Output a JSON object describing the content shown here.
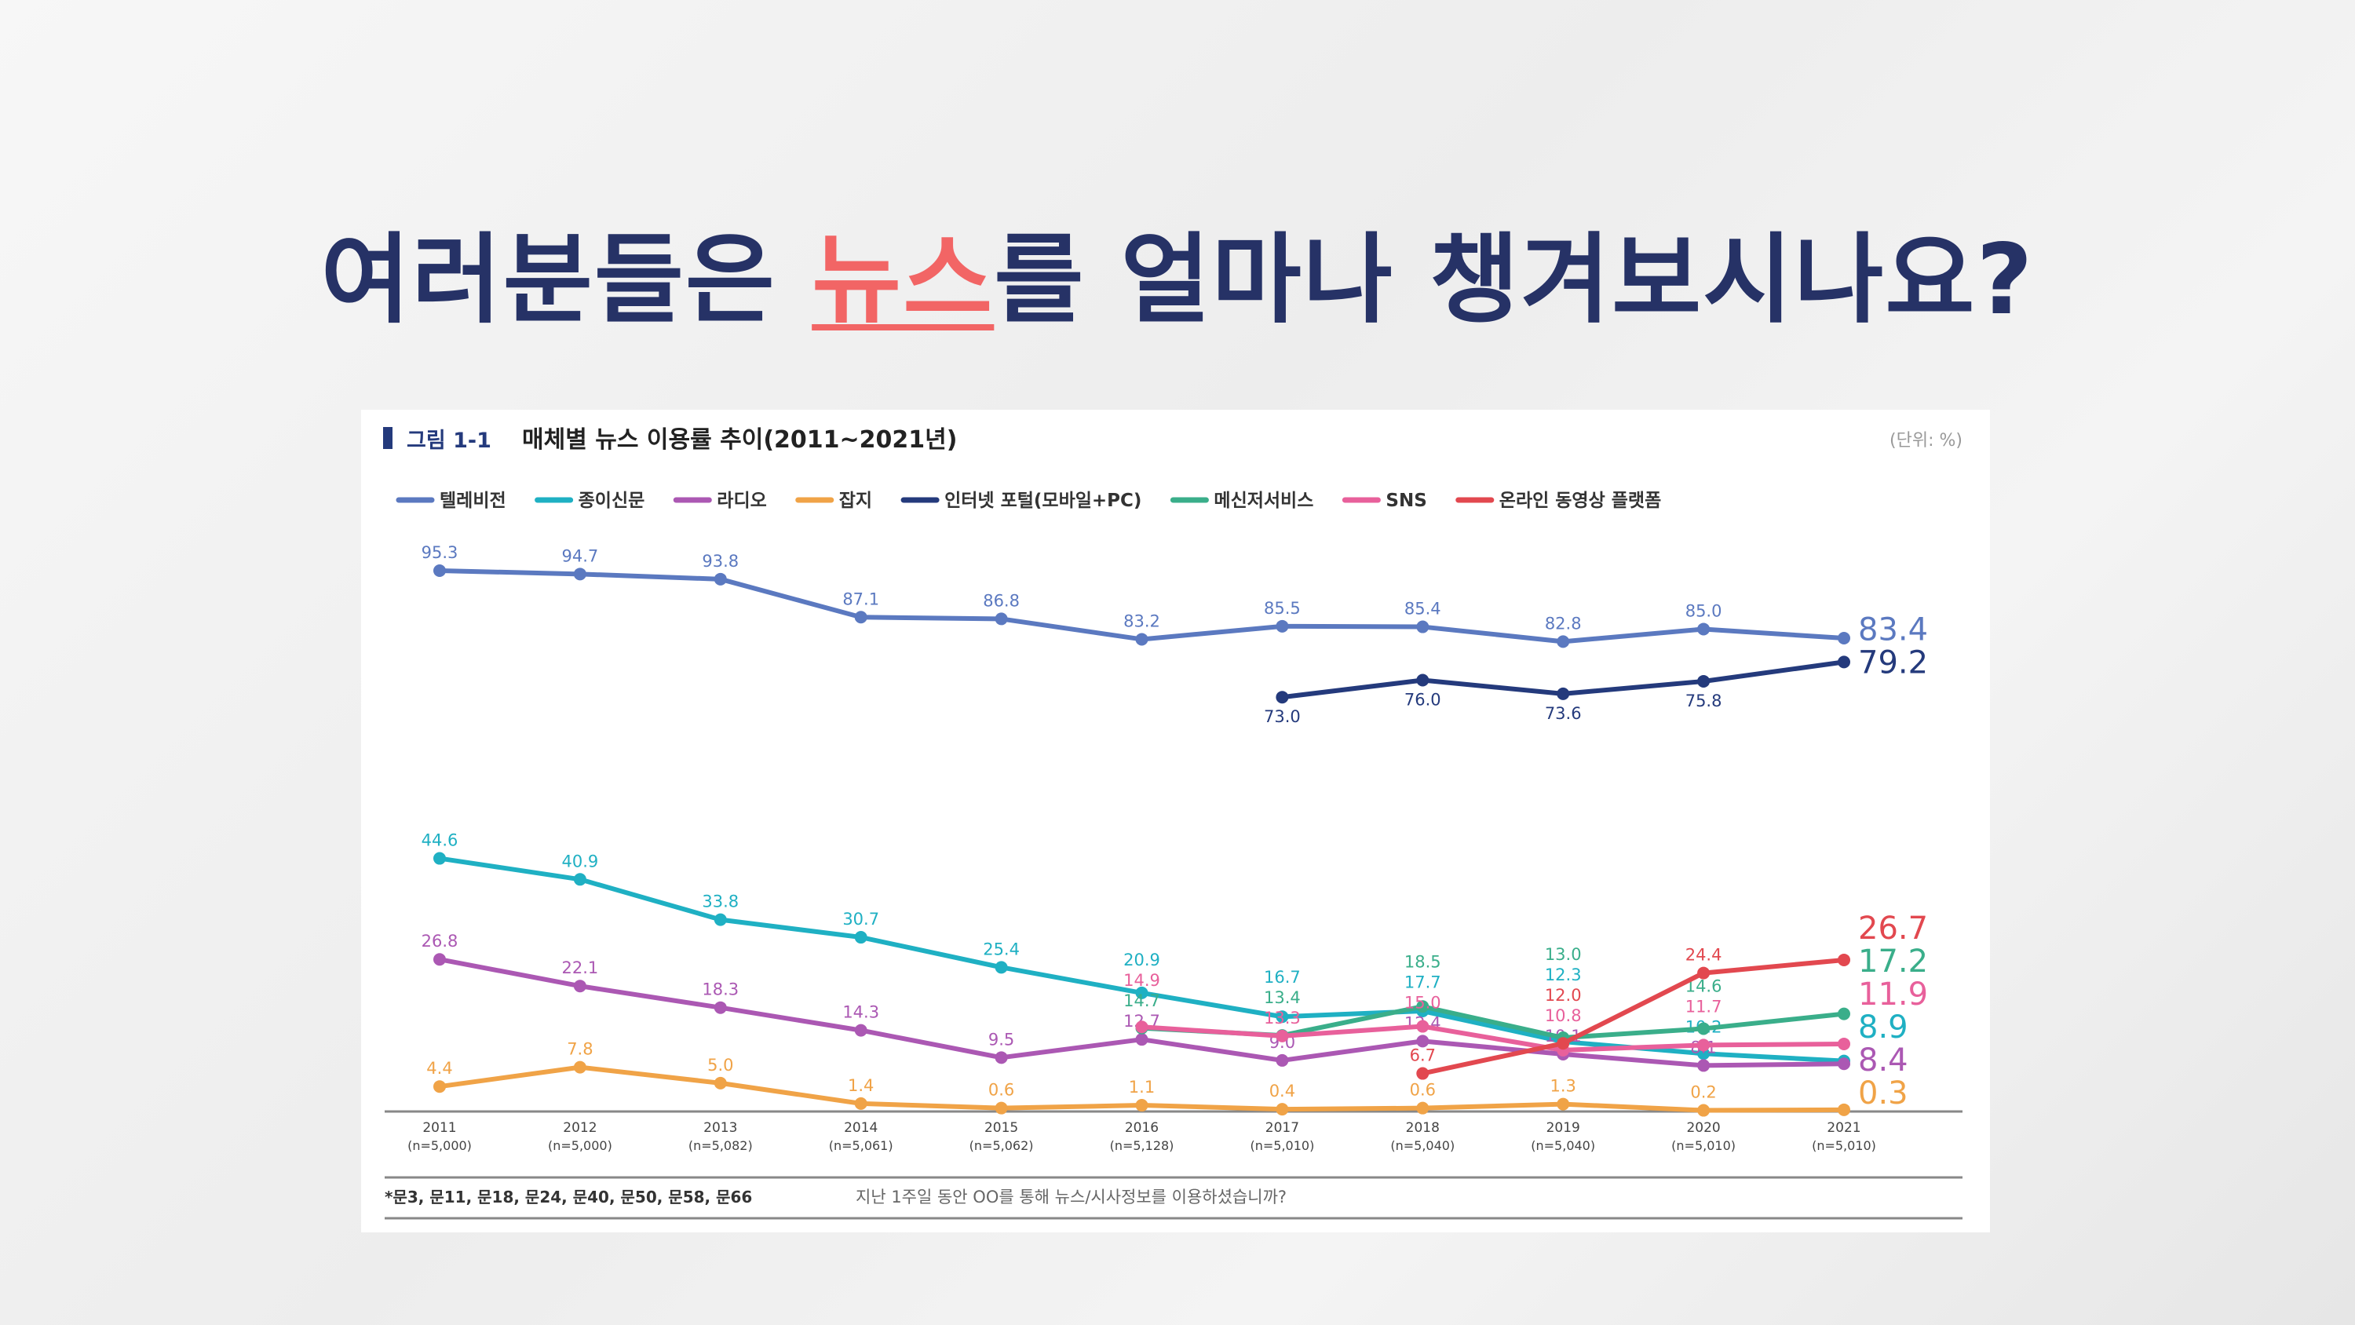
{
  "slide": {
    "title_before": "여러분들은 ",
    "title_highlight": "뉴스",
    "title_after": "를 얼마나 챙겨보시나요?",
    "title_color": "#263266",
    "highlight_color": "#f26565"
  },
  "chart_data": {
    "type": "line",
    "figure_label": "그림 1-1",
    "title": "매체별 뉴스 이용률 추이(2011~2021년)",
    "unit": "(단위: %)",
    "x": [
      "2011",
      "2012",
      "2013",
      "2014",
      "2015",
      "2016",
      "2017",
      "2018",
      "2019",
      "2020",
      "2021"
    ],
    "x_sample_sizes": [
      "(n=5,000)",
      "(n=5,000)",
      "(n=5,082)",
      "(n=5,061)",
      "(n=5,062)",
      "(n=5,128)",
      "(n=5,010)",
      "(n=5,040)",
      "(n=5,040)",
      "(n=5,010)",
      "(n=5,010)"
    ],
    "ylim": [
      0,
      100
    ],
    "grid": false,
    "legend_position": "top",
    "series": [
      {
        "name": "텔레비전",
        "color": "#5b79c0",
        "values": [
          95.3,
          94.7,
          93.8,
          87.1,
          86.8,
          83.2,
          85.5,
          85.4,
          82.8,
          85.0,
          83.4
        ]
      },
      {
        "name": "종이신문",
        "color": "#1fb0c3",
        "values": [
          44.6,
          40.9,
          33.8,
          30.7,
          25.4,
          20.9,
          16.7,
          17.7,
          12.3,
          10.2,
          8.9
        ]
      },
      {
        "name": "라디오",
        "color": "#ab58b3",
        "values": [
          26.8,
          22.1,
          18.3,
          14.3,
          9.5,
          12.7,
          9.0,
          12.4,
          10.1,
          8.1,
          8.4
        ]
      },
      {
        "name": "잡지",
        "color": "#f0a347",
        "values": [
          4.4,
          7.8,
          5.0,
          1.4,
          0.6,
          1.1,
          0.4,
          0.6,
          1.3,
          0.2,
          0.3
        ]
      },
      {
        "name": "인터넷 포털(모바일+PC)",
        "color": "#243a7c",
        "values": [
          null,
          null,
          null,
          null,
          null,
          null,
          73.0,
          76.0,
          73.6,
          75.8,
          79.2
        ]
      },
      {
        "name": "메신저서비스",
        "color": "#3aae8a",
        "values": [
          null,
          null,
          null,
          null,
          null,
          14.7,
          13.4,
          18.5,
          13.0,
          14.6,
          17.2
        ]
      },
      {
        "name": "SNS",
        "color": "#e8609b",
        "values": [
          null,
          null,
          null,
          null,
          null,
          14.9,
          13.3,
          15.0,
          10.8,
          11.7,
          11.9
        ]
      },
      {
        "name": "온라인 동영상 플랫폼",
        "color": "#e2484f",
        "values": [
          null,
          null,
          null,
          null,
          null,
          null,
          null,
          6.7,
          12.0,
          24.4,
          26.7
        ]
      }
    ],
    "footnote_left": "*문3, 문11, 문18, 문24, 문40, 문50, 문58, 문66",
    "footnote_question": "지난 1주일 동안 OO를 통해 뉴스/시사정보를 이용하셨습니까?"
  }
}
